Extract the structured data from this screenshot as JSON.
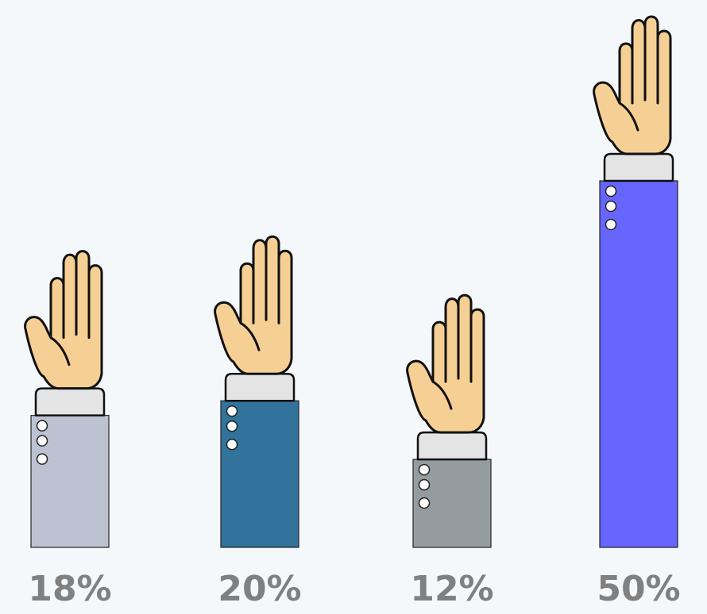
{
  "chart_data": {
    "type": "bar",
    "title": "",
    "xlabel": "",
    "ylabel": "",
    "categories": [
      "",
      "",
      "",
      ""
    ],
    "values": [
      18,
      20,
      12,
      50
    ],
    "value_labels": [
      "18%",
      "20%",
      "12%",
      "50%"
    ],
    "unit": "%",
    "ylim": [
      0,
      50
    ],
    "grid": false,
    "legend": "none",
    "bar_style": "raised-hand-with-sleeve",
    "colors": [
      "#bcc2d1",
      "#32739c",
      "#949c9f",
      "#6666ff"
    ],
    "skin_color": "#f5cf94",
    "cuff_color": "#e4e4e4",
    "outline_color": "#111111",
    "label_color": "#808080",
    "background": "#f5f8fb"
  }
}
